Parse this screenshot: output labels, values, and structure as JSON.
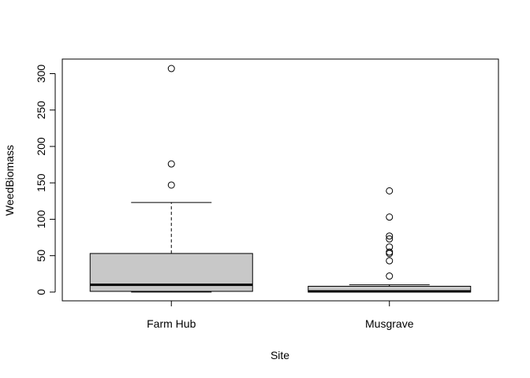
{
  "chart_data": {
    "type": "box",
    "title": "",
    "xlabel": "Site",
    "ylabel": "WeedBiomass",
    "ylim": [
      -12,
      320
    ],
    "y_ticks": [
      0,
      50,
      100,
      150,
      200,
      250,
      300
    ],
    "grid": false,
    "legend": "none",
    "fill_color": "#c8c8c8",
    "categories": [
      "Farm Hub",
      "Musgrave"
    ],
    "boxes": [
      {
        "name": "Farm Hub",
        "whisker_low": 0,
        "q1": 1,
        "median": 10,
        "q3": 53,
        "whisker_high": 123,
        "outliers": [
          147,
          176,
          307
        ]
      },
      {
        "name": "Musgrave",
        "whisker_low": 0,
        "q1": 0,
        "median": 1,
        "q3": 8,
        "whisker_high": 10,
        "outliers": [
          22,
          43,
          53,
          55,
          62,
          73,
          77,
          103,
          139
        ]
      }
    ]
  }
}
